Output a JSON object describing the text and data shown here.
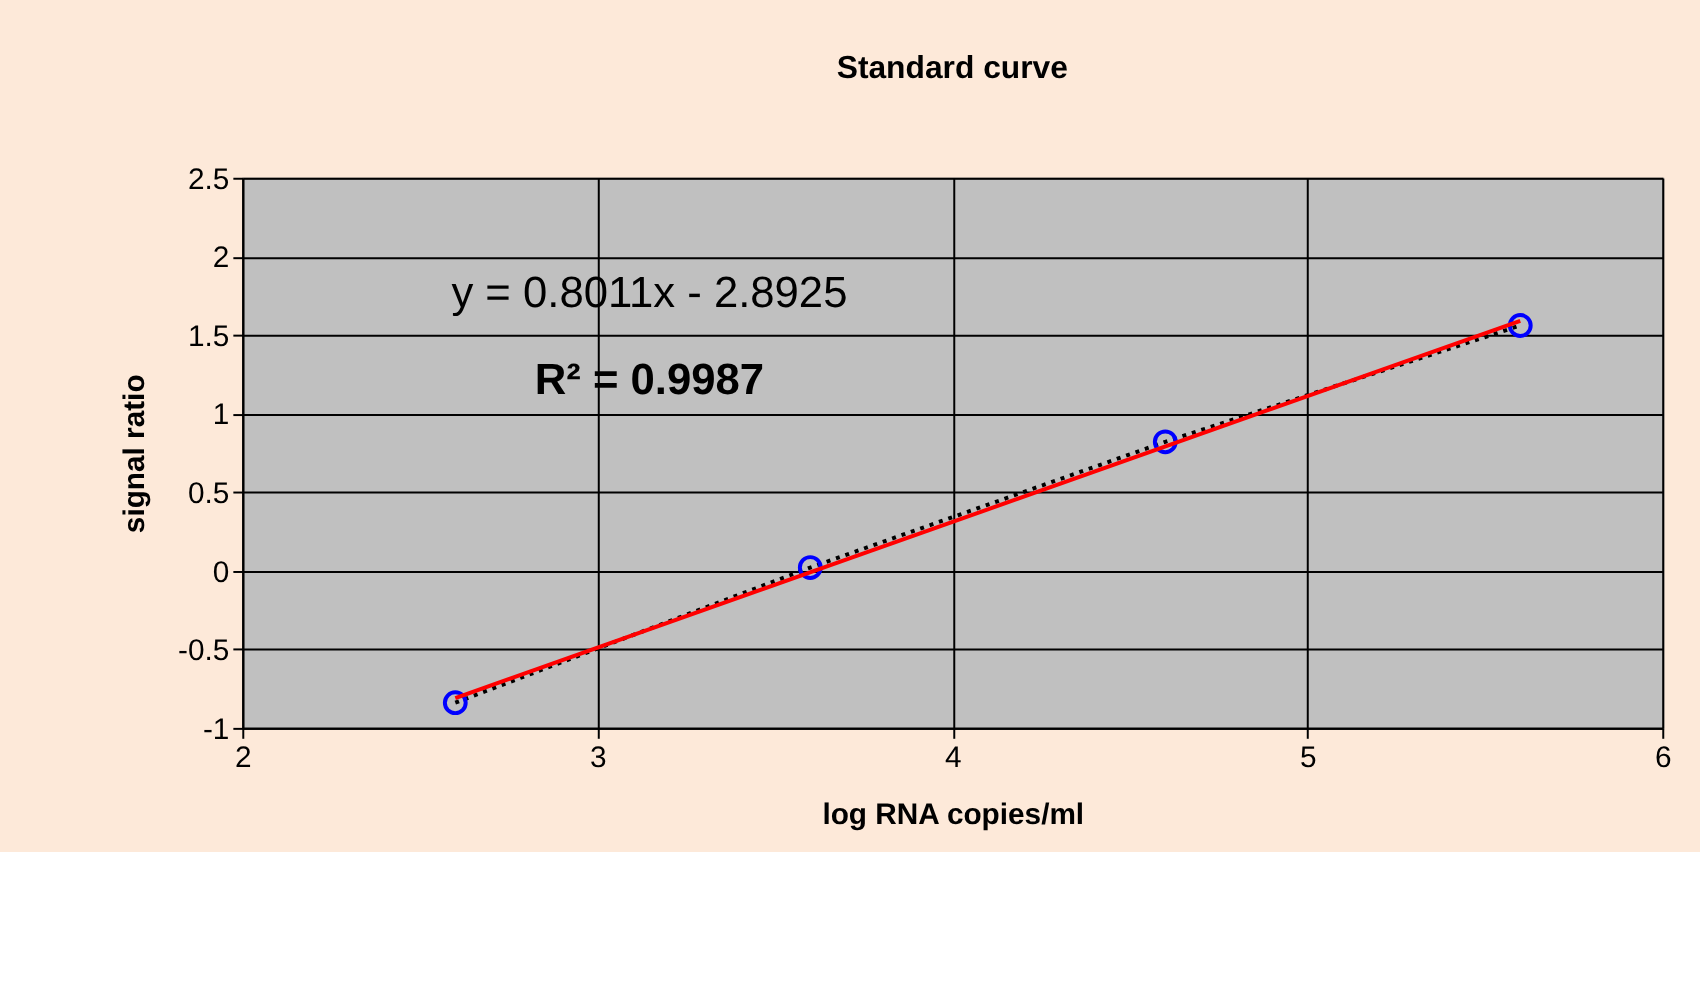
{
  "chart_data": {
    "type": "scatter",
    "title": "Standard curve",
    "xlabel": "log RNA copies/ml",
    "ylabel": "signal ratio",
    "xlim": [
      2,
      6
    ],
    "xticks": [
      2,
      3,
      4,
      5,
      6
    ],
    "ylim": [
      -1,
      2.5
    ],
    "yticks": [
      -1,
      -0.5,
      0,
      0.5,
      1,
      1.5,
      2,
      2.5
    ],
    "grid": true,
    "annotations": [
      "y = 0.8011x - 2.8925",
      "R² = 0.9987"
    ],
    "series": [
      {
        "type": "line",
        "color": "#000000",
        "line_style": "dotted",
        "marker": "none",
        "x": [
          2.6,
          3.6,
          4.6,
          5.6
        ],
        "values": [
          -0.84,
          0.02,
          0.82,
          1.56
        ]
      },
      {
        "color": "#0000ff",
        "marker": "circle",
        "x": [
          2.6,
          3.6,
          4.6,
          5.6
        ],
        "values": [
          -0.84,
          0.02,
          0.82,
          1.56
        ]
      },
      {
        "type": "line",
        "color": "#ff0000",
        "line_style": "solid",
        "marker": "none",
        "x": [
          2.6,
          5.6
        ],
        "values": [
          -0.81,
          1.59
        ]
      }
    ]
  }
}
